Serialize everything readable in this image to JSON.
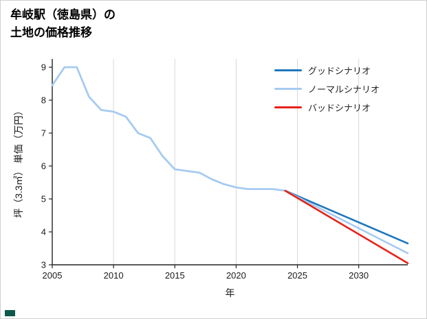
{
  "title": {
    "line1": "牟岐駅（徳島県）の",
    "line2": "土地の価格推移"
  },
  "legend": {
    "items": [
      {
        "label": "グッドシナリオ",
        "color": "#1d76bd"
      },
      {
        "label": "ノーマルシナリオ",
        "color": "#a5cbf0"
      },
      {
        "label": "バッドシナリオ",
        "color": "#e62119"
      }
    ]
  },
  "chart_data": {
    "type": "line",
    "title": "牟岐駅（徳島県）の土地の価格推移",
    "xlabel": "年",
    "ylabel": "坪（3.3㎡） 単価（万円）",
    "xlim": [
      2005,
      2034
    ],
    "ylim": [
      3,
      9
    ],
    "xticks": [
      2005,
      2010,
      2015,
      2020,
      2025,
      2030
    ],
    "yticks": [
      3,
      4,
      5,
      6,
      7,
      8,
      9
    ],
    "grid": "vertical-only",
    "grid_color": "#d7d7d7",
    "axis_color": "#222222",
    "legend_position": "top-right",
    "series": [
      {
        "name": "historical",
        "color": "#a5cbf0",
        "width": 2.8,
        "x": [
          2005,
          2006,
          2007,
          2008,
          2009,
          2010,
          2011,
          2012,
          2013,
          2014,
          2015,
          2016,
          2017,
          2018,
          2019,
          2020,
          2021,
          2022,
          2023,
          2024
        ],
        "y": [
          8.45,
          9.0,
          9.0,
          8.1,
          7.7,
          7.65,
          7.5,
          7.0,
          6.85,
          6.3,
          5.9,
          5.85,
          5.8,
          5.6,
          5.45,
          5.35,
          5.3,
          5.3,
          5.3,
          5.25
        ]
      },
      {
        "name": "good-scenario",
        "color": "#1d76bd",
        "width": 2.6,
        "x": [
          2024,
          2034
        ],
        "y": [
          5.25,
          3.65
        ]
      },
      {
        "name": "normal-scenario",
        "color": "#a5cbf0",
        "width": 2.6,
        "x": [
          2024,
          2034
        ],
        "y": [
          5.25,
          3.35
        ]
      },
      {
        "name": "bad-scenario",
        "color": "#e62119",
        "width": 2.6,
        "x": [
          2024,
          2034
        ],
        "y": [
          5.25,
          3.05
        ]
      }
    ]
  },
  "corner_mark_color": "#0e5a4a"
}
